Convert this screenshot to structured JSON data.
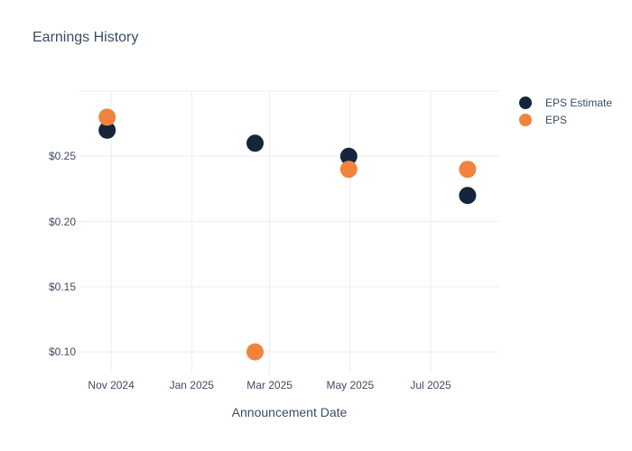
{
  "chart_data": {
    "type": "scatter",
    "title": "Earnings History",
    "xlabel": "Announcement Date",
    "ylabel": "",
    "grid": true,
    "legend_position": "right-top",
    "xlim": [
      "2024-10-08",
      "2025-08-22"
    ],
    "ylim": [
      0.0835,
      0.3
    ],
    "x_ticks": [
      {
        "date": "2024-11-01",
        "label": "Nov 2024"
      },
      {
        "date": "2025-01-01",
        "label": "Jan 2025"
      },
      {
        "date": "2025-03-01",
        "label": "Mar 2025"
      },
      {
        "date": "2025-05-01",
        "label": "May 2025"
      },
      {
        "date": "2025-07-01",
        "label": "Jul 2025"
      }
    ],
    "y_ticks": [
      {
        "value": 0.1,
        "label": "$0.10"
      },
      {
        "value": 0.15,
        "label": "$0.15"
      },
      {
        "value": 0.2,
        "label": "$0.20"
      },
      {
        "value": 0.25,
        "label": "$0.25"
      }
    ],
    "top_boundary_value": 0.3,
    "marker_diameter": 19,
    "series": [
      {
        "name": "EPS Estimate",
        "color": "#14253C",
        "points": [
          {
            "date": "2024-10-29",
            "value": 0.27
          },
          {
            "date": "2025-02-18",
            "value": 0.26
          },
          {
            "date": "2025-04-30",
            "value": 0.25
          },
          {
            "date": "2025-07-29",
            "value": 0.22
          }
        ]
      },
      {
        "name": "EPS",
        "color": "#F2833C",
        "points": [
          {
            "date": "2024-10-29",
            "value": 0.28
          },
          {
            "date": "2025-02-18",
            "value": 0.1
          },
          {
            "date": "2025-04-30",
            "value": 0.24
          },
          {
            "date": "2025-07-29",
            "value": 0.24
          }
        ]
      }
    ]
  },
  "colors": {
    "background": "#FFFFFF",
    "grid": "#EAEDF4",
    "title_text": "#3B4B68",
    "tick_text": "#3E4C64"
  }
}
